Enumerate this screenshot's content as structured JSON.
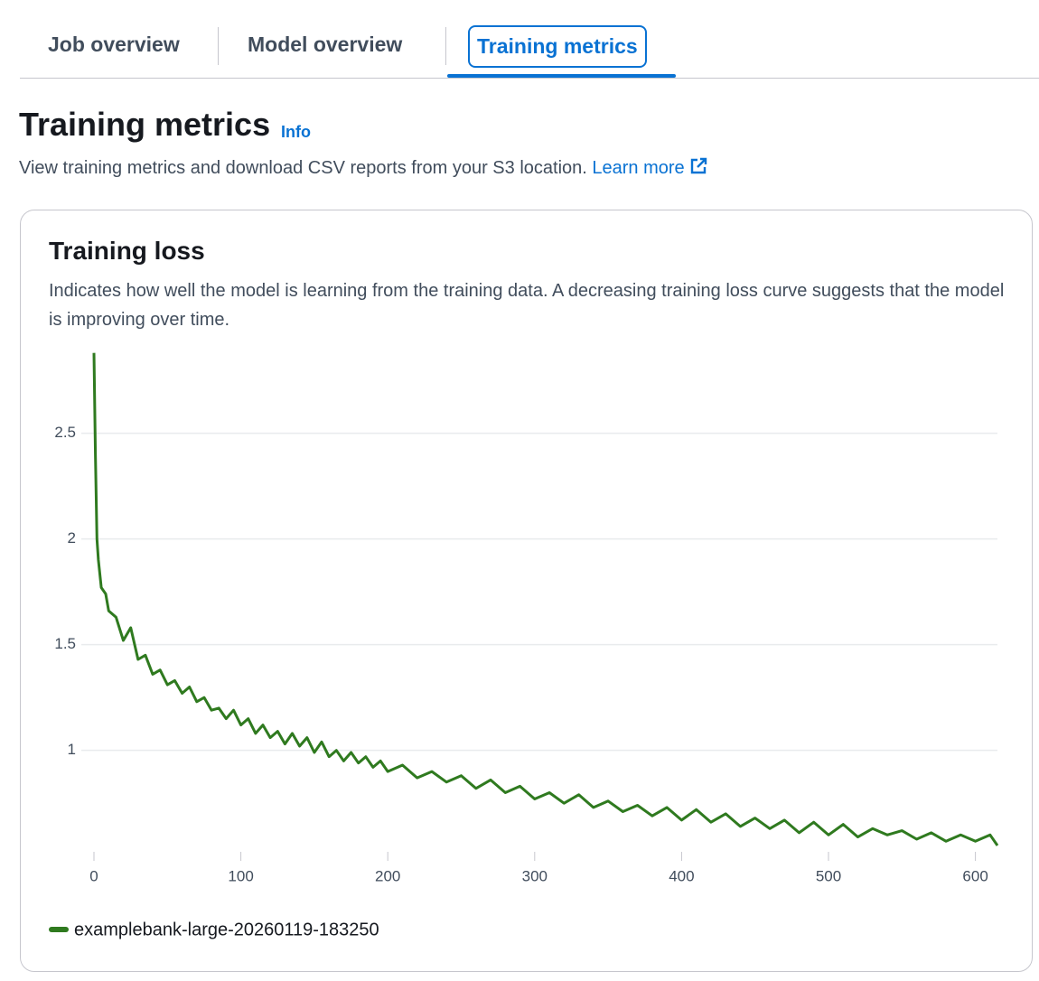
{
  "tabs": [
    "Job overview",
    "Model overview",
    "Training metrics"
  ],
  "header": {
    "title": "Training metrics",
    "info": "Info",
    "description": "View training metrics and download CSV reports from your S3 location.",
    "link": "Learn more"
  },
  "chart_data": {
    "type": "line",
    "title": "Training loss",
    "subtitle": "Indicates how well the model is learning from the training data. A decreasing training loss curve suggests that the model is improving over time.",
    "x": [
      0,
      1,
      2,
      3,
      5,
      8,
      10,
      15,
      20,
      25,
      30,
      35,
      40,
      45,
      50,
      55,
      60,
      65,
      70,
      75,
      80,
      85,
      90,
      95,
      100,
      105,
      110,
      115,
      120,
      125,
      130,
      135,
      140,
      145,
      150,
      155,
      160,
      165,
      170,
      175,
      180,
      185,
      190,
      195,
      200,
      210,
      220,
      230,
      240,
      250,
      260,
      270,
      280,
      290,
      300,
      310,
      320,
      330,
      340,
      350,
      360,
      370,
      380,
      390,
      400,
      410,
      420,
      430,
      440,
      450,
      460,
      470,
      480,
      490,
      500,
      510,
      520,
      530,
      540,
      550,
      560,
      570,
      580,
      590,
      600,
      610,
      615
    ],
    "series": [
      {
        "name": "examplebank-large-20260119-183250",
        "color": "#2f7a1f",
        "values": [
          2.88,
          2.4,
          2.0,
          1.9,
          1.77,
          1.74,
          1.66,
          1.63,
          1.52,
          1.58,
          1.43,
          1.45,
          1.36,
          1.38,
          1.31,
          1.33,
          1.27,
          1.3,
          1.23,
          1.25,
          1.19,
          1.2,
          1.15,
          1.19,
          1.12,
          1.15,
          1.08,
          1.12,
          1.06,
          1.09,
          1.03,
          1.08,
          1.02,
          1.06,
          0.99,
          1.04,
          0.97,
          1.0,
          0.95,
          0.99,
          0.94,
          0.97,
          0.92,
          0.95,
          0.9,
          0.93,
          0.87,
          0.9,
          0.85,
          0.88,
          0.82,
          0.86,
          0.8,
          0.83,
          0.77,
          0.8,
          0.75,
          0.79,
          0.73,
          0.76,
          0.71,
          0.74,
          0.69,
          0.73,
          0.67,
          0.72,
          0.66,
          0.7,
          0.64,
          0.68,
          0.63,
          0.67,
          0.61,
          0.66,
          0.6,
          0.65,
          0.59,
          0.63,
          0.6,
          0.62,
          0.58,
          0.61,
          0.57,
          0.6,
          0.57,
          0.6,
          0.55
        ]
      }
    ],
    "xlim": [
      0,
      615
    ],
    "ylim": [
      0.52,
      2.9
    ],
    "xticks": [
      0,
      100,
      200,
      300,
      400,
      500,
      600
    ],
    "yticks": [
      1,
      1.5,
      2,
      2.5
    ],
    "grid": true
  }
}
